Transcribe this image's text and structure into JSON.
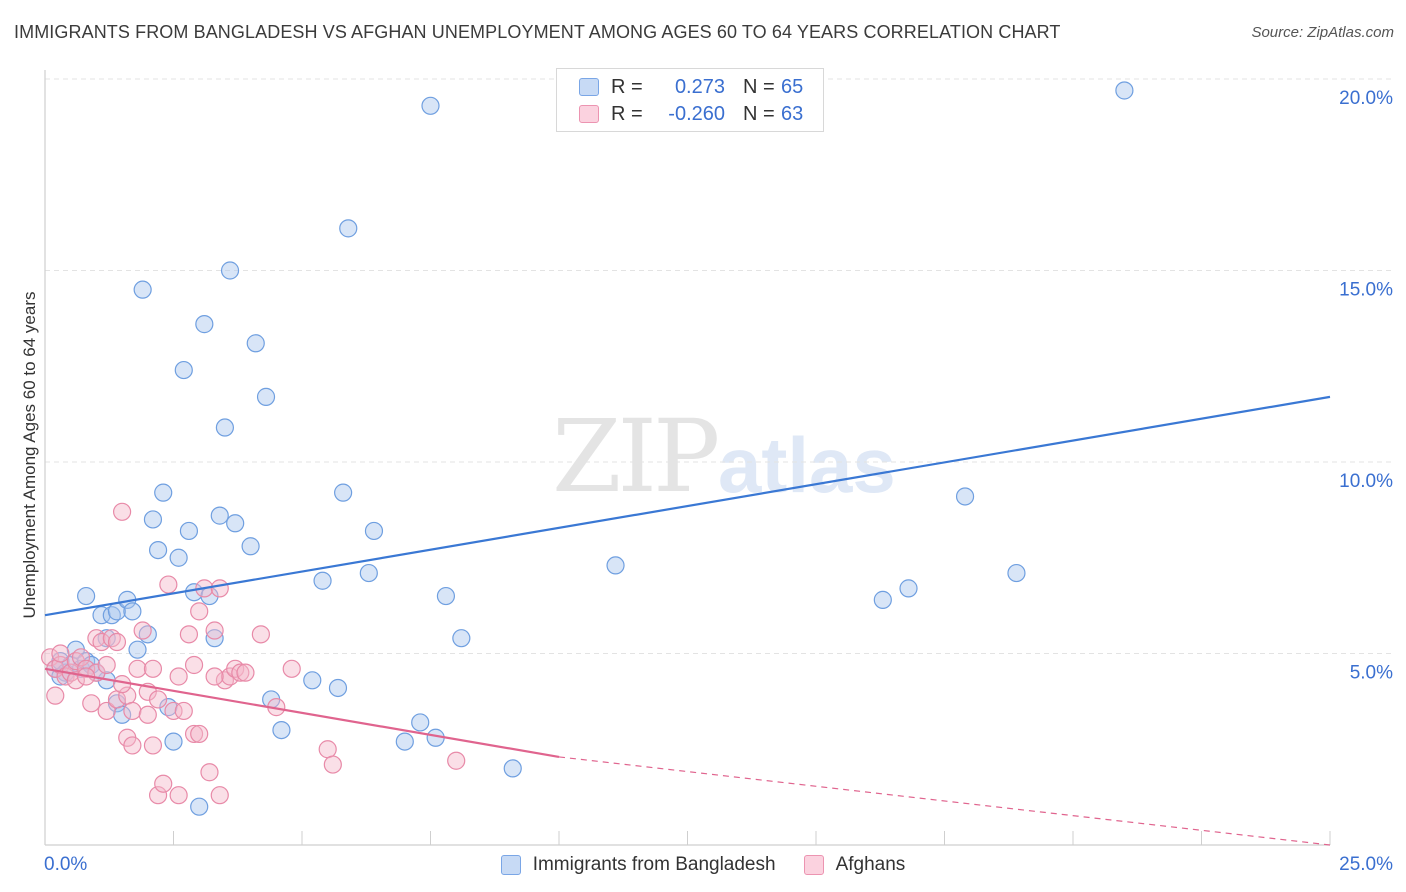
{
  "header": {
    "title": "IMMIGRANTS FROM BANGLADESH VS AFGHAN UNEMPLOYMENT AMONG AGES 60 TO 64 YEARS CORRELATION CHART",
    "source": "Source: ZipAtlas.com"
  },
  "watermark": {
    "zip": "ZIP",
    "atlas": "atlas"
  },
  "legend": {
    "rows": [
      {
        "r_label": "R =",
        "r_value": "0.273",
        "n_label": "N =",
        "n_value": "65",
        "color": "#a8c6ee"
      },
      {
        "r_label": "R =",
        "r_value": "-0.260",
        "n_label": "N =",
        "n_value": "63",
        "color": "#f5b8ca"
      }
    ]
  },
  "bottom_legend": {
    "items": [
      {
        "label": "Immigrants from Bangladesh",
        "color": "#a8c6ee"
      },
      {
        "label": "Afghans",
        "color": "#f5b8ca"
      }
    ]
  },
  "chart_data": {
    "type": "scatter",
    "title": "IMMIGRANTS FROM BANGLADESH VS AFGHAN UNEMPLOYMENT AMONG AGES 60 TO 64 YEARS CORRELATION CHART",
    "xlabel": "",
    "ylabel": "Unemployment Among Ages 60 to 64 years",
    "xlim": [
      0,
      25
    ],
    "ylim": [
      0,
      20.5
    ],
    "x_tick_labels": [
      "0.0%",
      "25.0%"
    ],
    "y_ticks": [
      5,
      10,
      15,
      20
    ],
    "y_tick_labels": [
      "5.0%",
      "10.0%",
      "15.0%",
      "20.0%"
    ],
    "grid": true,
    "series": [
      {
        "name": "Immigrants from Bangladesh",
        "color": "#a8c6ee",
        "stroke": "#6f9fe0",
        "trend": {
          "x": [
            0,
            25
          ],
          "y": [
            6.0,
            11.7
          ],
          "color": "#3a78d4"
        },
        "points": [
          [
            0.2,
            4.6
          ],
          [
            0.3,
            4.8
          ],
          [
            0.4,
            4.5
          ],
          [
            0.5,
            4.7
          ],
          [
            0.6,
            5.1
          ],
          [
            0.7,
            4.6
          ],
          [
            0.8,
            6.5
          ],
          [
            0.8,
            4.8
          ],
          [
            0.9,
            4.7
          ],
          [
            1.1,
            6.0
          ],
          [
            1.2,
            4.3
          ],
          [
            1.2,
            5.4
          ],
          [
            1.3,
            6.0
          ],
          [
            1.4,
            6.1
          ],
          [
            1.4,
            3.7
          ],
          [
            1.5,
            3.4
          ],
          [
            1.6,
            6.4
          ],
          [
            1.7,
            6.1
          ],
          [
            1.8,
            5.1
          ],
          [
            1.9,
            14.5
          ],
          [
            2.0,
            5.5
          ],
          [
            2.1,
            8.5
          ],
          [
            2.2,
            7.7
          ],
          [
            2.3,
            9.2
          ],
          [
            2.4,
            3.6
          ],
          [
            2.5,
            2.7
          ],
          [
            2.6,
            7.5
          ],
          [
            2.7,
            12.4
          ],
          [
            2.8,
            8.2
          ],
          [
            2.9,
            6.6
          ],
          [
            3.0,
            1.0
          ],
          [
            3.1,
            13.6
          ],
          [
            3.2,
            6.5
          ],
          [
            3.3,
            5.4
          ],
          [
            3.4,
            8.6
          ],
          [
            3.5,
            10.9
          ],
          [
            3.6,
            15.0
          ],
          [
            3.7,
            8.4
          ],
          [
            4.0,
            7.8
          ],
          [
            4.1,
            13.1
          ],
          [
            4.3,
            11.7
          ],
          [
            4.4,
            3.8
          ],
          [
            4.6,
            3.0
          ],
          [
            5.2,
            4.3
          ],
          [
            5.4,
            6.9
          ],
          [
            5.7,
            4.1
          ],
          [
            5.8,
            9.2
          ],
          [
            5.9,
            16.1
          ],
          [
            6.3,
            7.1
          ],
          [
            6.4,
            8.2
          ],
          [
            7.0,
            2.7
          ],
          [
            7.3,
            3.2
          ],
          [
            7.5,
            19.3
          ],
          [
            7.6,
            2.8
          ],
          [
            7.8,
            6.5
          ],
          [
            8.1,
            5.4
          ],
          [
            9.1,
            2.0
          ],
          [
            11.1,
            7.3
          ],
          [
            16.3,
            6.4
          ],
          [
            16.8,
            6.7
          ],
          [
            17.9,
            9.1
          ],
          [
            18.9,
            7.1
          ],
          [
            21.0,
            19.7
          ],
          [
            0.3,
            4.4
          ],
          [
            1.0,
            4.5
          ]
        ]
      },
      {
        "name": "Afghans",
        "color": "#f5b8ca",
        "stroke": "#e88aa8",
        "trend": {
          "x": [
            0,
            10
          ],
          "y": [
            4.6,
            2.3
          ],
          "dashed_to": [
            25,
            -0.45
          ],
          "color": "#e0648e"
        },
        "points": [
          [
            0.1,
            4.9
          ],
          [
            0.2,
            4.6
          ],
          [
            0.2,
            3.9
          ],
          [
            0.3,
            4.7
          ],
          [
            0.4,
            4.4
          ],
          [
            0.5,
            4.5
          ],
          [
            0.6,
            4.8
          ],
          [
            0.6,
            4.3
          ],
          [
            0.7,
            4.9
          ],
          [
            0.8,
            4.6
          ],
          [
            0.9,
            3.7
          ],
          [
            1.0,
            5.4
          ],
          [
            1.0,
            4.5
          ],
          [
            1.1,
            5.3
          ],
          [
            1.2,
            3.5
          ],
          [
            1.2,
            4.7
          ],
          [
            1.3,
            5.4
          ],
          [
            1.4,
            5.3
          ],
          [
            1.4,
            3.8
          ],
          [
            1.5,
            8.7
          ],
          [
            1.6,
            3.9
          ],
          [
            1.6,
            2.8
          ],
          [
            1.7,
            3.5
          ],
          [
            1.7,
            2.6
          ],
          [
            1.8,
            4.6
          ],
          [
            1.9,
            5.6
          ],
          [
            2.0,
            4.0
          ],
          [
            2.0,
            3.4
          ],
          [
            2.1,
            4.6
          ],
          [
            2.1,
            2.6
          ],
          [
            2.2,
            3.8
          ],
          [
            2.2,
            1.3
          ],
          [
            2.3,
            1.6
          ],
          [
            2.4,
            6.8
          ],
          [
            2.5,
            3.5
          ],
          [
            2.6,
            1.3
          ],
          [
            2.6,
            4.4
          ],
          [
            2.7,
            3.5
          ],
          [
            2.8,
            5.5
          ],
          [
            2.9,
            2.9
          ],
          [
            3.0,
            2.9
          ],
          [
            3.0,
            6.1
          ],
          [
            3.1,
            6.7
          ],
          [
            3.2,
            1.9
          ],
          [
            3.3,
            5.6
          ],
          [
            3.4,
            6.7
          ],
          [
            3.4,
            1.3
          ],
          [
            3.5,
            4.3
          ],
          [
            3.6,
            4.4
          ],
          [
            3.7,
            4.6
          ],
          [
            3.8,
            4.5
          ],
          [
            3.9,
            4.5
          ],
          [
            4.2,
            5.5
          ],
          [
            4.5,
            3.6
          ],
          [
            4.8,
            4.6
          ],
          [
            5.5,
            2.5
          ],
          [
            5.6,
            2.1
          ],
          [
            8.0,
            2.2
          ],
          [
            0.8,
            4.4
          ],
          [
            1.5,
            4.2
          ],
          [
            2.9,
            4.7
          ],
          [
            3.3,
            4.4
          ],
          [
            0.3,
            5.0
          ]
        ]
      }
    ]
  }
}
